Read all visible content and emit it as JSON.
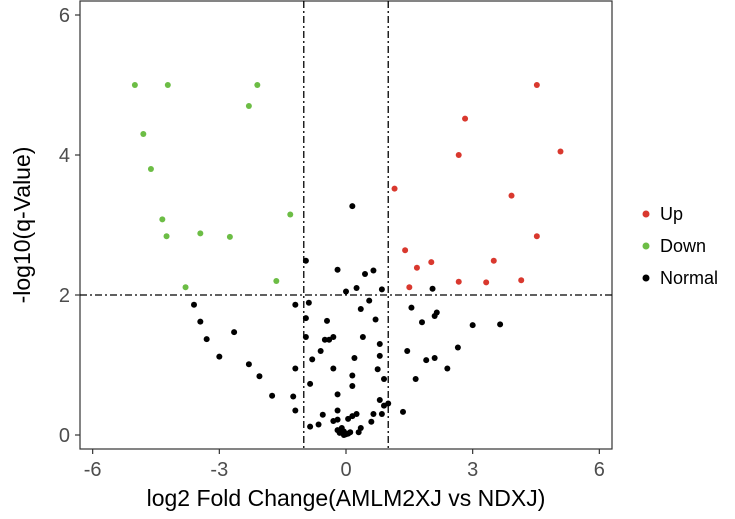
{
  "chart_data": {
    "type": "scatter",
    "title": "",
    "xlabel": "log2 Fold Change(AMLM2XJ vs NDXJ)",
    "ylabel": "-log10(q-Value)",
    "xlim": [
      -6.3,
      6.3
    ],
    "ylim": [
      -0.2,
      6.2
    ],
    "xticks": [
      -6,
      -3,
      0,
      3,
      6
    ],
    "yticks": [
      0,
      2,
      4,
      6
    ],
    "grid": false,
    "legend": "right",
    "thresholds": {
      "vertical": [
        -1,
        1
      ],
      "horizontal": [
        2
      ]
    },
    "series": [
      {
        "name": "Up",
        "color": "#d9382e",
        "points": [
          [
            4.52,
            5.0
          ],
          [
            2.82,
            4.52
          ],
          [
            5.08,
            4.05
          ],
          [
            2.67,
            4.0
          ],
          [
            3.92,
            3.42
          ],
          [
            1.15,
            3.52
          ],
          [
            4.52,
            2.84
          ],
          [
            1.4,
            2.64
          ],
          [
            3.5,
            2.49
          ],
          [
            2.02,
            2.47
          ],
          [
            1.68,
            2.39
          ],
          [
            2.67,
            2.19
          ],
          [
            3.32,
            2.18
          ],
          [
            4.15,
            2.21
          ],
          [
            1.5,
            2.11
          ]
        ]
      },
      {
        "name": "Down",
        "color": "#6cbd45",
        "points": [
          [
            -5.0,
            5.0
          ],
          [
            -4.22,
            5.0
          ],
          [
            -2.1,
            5.0
          ],
          [
            -2.3,
            4.7
          ],
          [
            -4.8,
            4.3
          ],
          [
            -4.62,
            3.8
          ],
          [
            -1.32,
            3.15
          ],
          [
            -4.35,
            3.08
          ],
          [
            -4.25,
            2.84
          ],
          [
            -3.45,
            2.88
          ],
          [
            -2.75,
            2.83
          ],
          [
            -1.65,
            2.2
          ],
          [
            -3.8,
            2.11
          ]
        ]
      },
      {
        "name": "Normal",
        "color": "#000000",
        "points": [
          [
            0.15,
            3.27
          ],
          [
            -0.95,
            2.49
          ],
          [
            0.65,
            2.35
          ],
          [
            0.45,
            2.3
          ],
          [
            -0.2,
            2.36
          ],
          [
            0.85,
            2.08
          ],
          [
            0.25,
            2.1
          ],
          [
            0.55,
            1.92
          ],
          [
            -1.2,
            1.86
          ],
          [
            -0.88,
            1.89
          ],
          [
            0.0,
            2.05
          ],
          [
            2.05,
            2.09
          ],
          [
            0.35,
            1.8
          ],
          [
            -3.6,
            1.86
          ],
          [
            1.55,
            1.82
          ],
          [
            -0.95,
            1.67
          ],
          [
            2.15,
            1.75
          ],
          [
            1.8,
            1.61
          ],
          [
            -0.45,
            1.63
          ],
          [
            -3.45,
            1.62
          ],
          [
            2.1,
            1.7
          ],
          [
            3.0,
            1.57
          ],
          [
            3.65,
            1.58
          ],
          [
            0.7,
            1.65
          ],
          [
            -2.65,
            1.47
          ],
          [
            -0.95,
            1.4
          ],
          [
            -0.3,
            1.4
          ],
          [
            -0.5,
            1.36
          ],
          [
            -0.4,
            1.36
          ],
          [
            0.4,
            1.4
          ],
          [
            -3.3,
            1.37
          ],
          [
            2.65,
            1.25
          ],
          [
            0.8,
            1.3
          ],
          [
            -0.6,
            1.2
          ],
          [
            -3.0,
            1.12
          ],
          [
            0.8,
            1.13
          ],
          [
            1.45,
            1.2
          ],
          [
            2.1,
            1.1
          ],
          [
            -0.8,
            1.08
          ],
          [
            0.2,
            1.1
          ],
          [
            1.9,
            1.07
          ],
          [
            -2.3,
            1.01
          ],
          [
            -1.2,
            0.95
          ],
          [
            -0.3,
            0.95
          ],
          [
            2.4,
            0.95
          ],
          [
            0.75,
            0.94
          ],
          [
            0.15,
            0.85
          ],
          [
            0.9,
            0.8
          ],
          [
            1.65,
            0.8
          ],
          [
            -2.05,
            0.84
          ],
          [
            -0.85,
            0.73
          ],
          [
            0.15,
            0.7
          ],
          [
            -1.75,
            0.56
          ],
          [
            -0.2,
            0.58
          ],
          [
            -1.25,
            0.55
          ],
          [
            0.8,
            0.5
          ],
          [
            1.0,
            0.45
          ],
          [
            0.9,
            0.42
          ],
          [
            -1.2,
            0.35
          ],
          [
            -0.2,
            0.35
          ],
          [
            0.65,
            0.3
          ],
          [
            1.35,
            0.33
          ],
          [
            0.85,
            0.3
          ],
          [
            -0.55,
            0.29
          ],
          [
            0.25,
            0.3
          ],
          [
            0.15,
            0.27
          ],
          [
            0.05,
            0.23
          ],
          [
            -0.2,
            0.22
          ],
          [
            0.6,
            0.19
          ],
          [
            -0.3,
            0.2
          ],
          [
            -0.65,
            0.15
          ],
          [
            0.35,
            0.1
          ],
          [
            -0.1,
            0.1
          ],
          [
            -0.2,
            0.07
          ],
          [
            -0.05,
            0.05
          ],
          [
            0.1,
            0.04
          ],
          [
            -0.15,
            0.03
          ],
          [
            0.3,
            0.04
          ],
          [
            0.05,
            0.02
          ],
          [
            -0.05,
            0.0
          ],
          [
            0.0,
            0.01
          ],
          [
            -0.85,
            0.12
          ]
        ]
      }
    ]
  }
}
